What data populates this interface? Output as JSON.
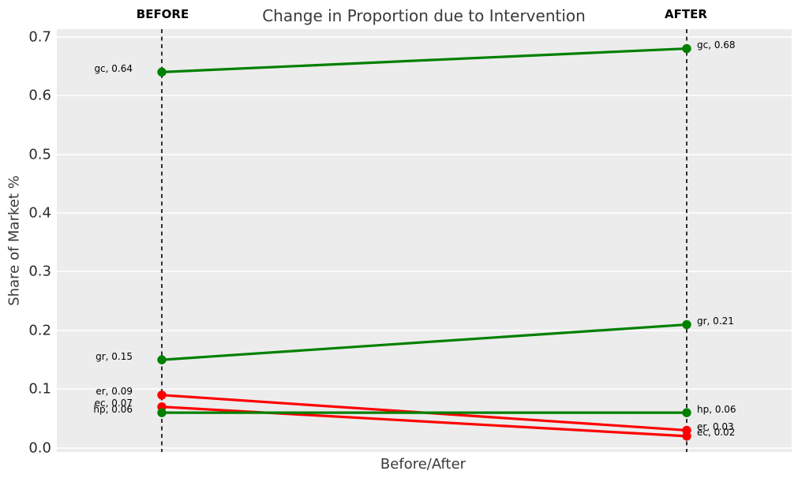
{
  "chart_data": {
    "type": "line",
    "subtype": "slope-chart",
    "title": "Change in Proportion due to Intervention",
    "xlabel": "Before/After",
    "ylabel": "Share of Market %",
    "column_headers": [
      "BEFORE",
      "AFTER"
    ],
    "yticks": [
      0.0,
      0.1,
      0.2,
      0.3,
      0.4,
      0.5,
      0.6,
      0.7
    ],
    "ylim": [
      -0.007,
      0.713
    ],
    "grid": "horizontal white gridlines on light-gray panel",
    "legend_position": "none",
    "colors": {
      "increase_or_stable": "#008000",
      "decrease": "#ff0000",
      "panel_background": "#ececec",
      "vline": "#000000"
    },
    "series": [
      {
        "name": "gc",
        "values": [
          0.64,
          0.68
        ],
        "color": "#008000",
        "labels": [
          "gc, 0.64",
          "gc, 0.68"
        ]
      },
      {
        "name": "gr",
        "values": [
          0.15,
          0.21
        ],
        "color": "#008000",
        "labels": [
          "gr, 0.15",
          "gr, 0.21"
        ]
      },
      {
        "name": "er",
        "values": [
          0.09,
          0.03
        ],
        "color": "#ff0000",
        "labels": [
          "er, 0.09",
          "er, 0.03"
        ]
      },
      {
        "name": "ec",
        "values": [
          0.07,
          0.02
        ],
        "color": "#ff0000",
        "labels": [
          "ec, 0.07",
          "ec, 0.02"
        ]
      },
      {
        "name": "hp",
        "values": [
          0.06,
          0.06
        ],
        "color": "#008000",
        "labels": [
          "hp, 0.06",
          "hp, 0.06"
        ]
      }
    ]
  }
}
